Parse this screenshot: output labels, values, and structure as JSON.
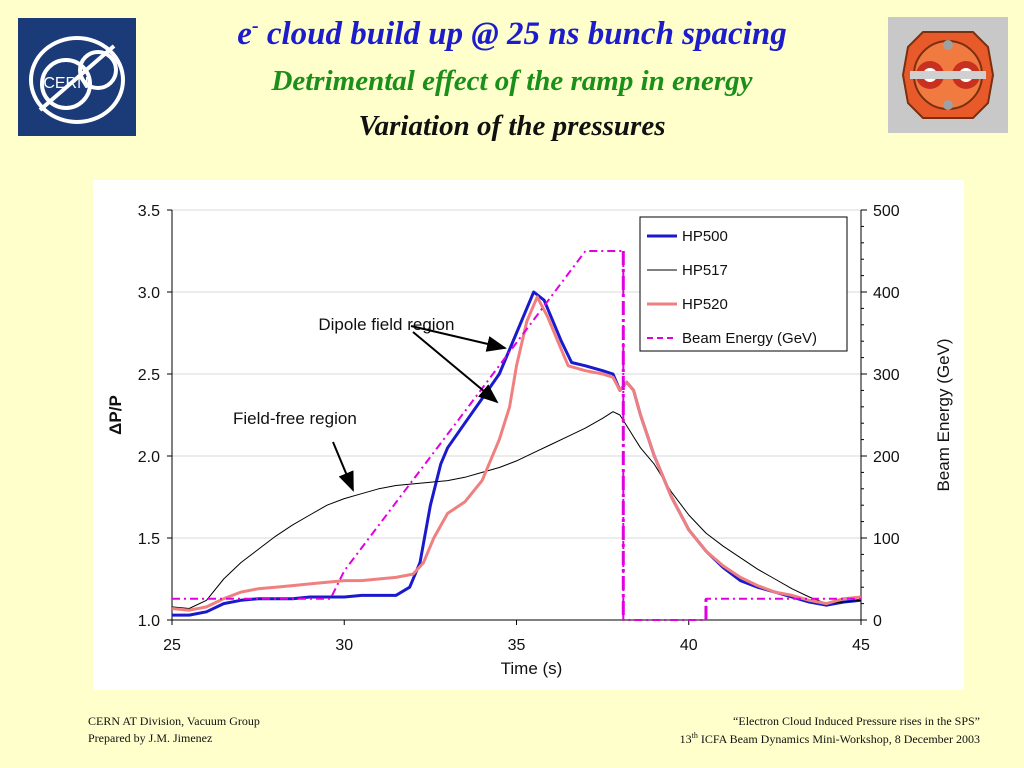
{
  "header": {
    "title_prefix": "e",
    "title_superscript": "-",
    "title_main": " cloud build up @ 25 ns bunch spacing",
    "subtitle_1": "Detrimental effect of the ramp in energy",
    "subtitle_2": "Variation of the pressures",
    "logo_left_text": "CERN"
  },
  "footer": {
    "left_line1": "CERN AT Division, Vacuum Group",
    "left_line2": "Prepared by J.M. Jimenez",
    "right_line1": "“Electron Cloud Induced Pressure rises in the SPS”",
    "right_line2_prefix": "13",
    "right_line2_superscript": "th",
    "right_line2_suffix": " ICFA Beam Dynamics Mini-Workshop, 8 December 2003"
  },
  "colors": {
    "title_main": "#1c1ccc",
    "subtitle_1": "#1a8f1a",
    "HP500": "#1a1acc",
    "HP517": "#000000",
    "HP520": "#f08080",
    "beam_energy": "#e000e0"
  },
  "chart_data": {
    "type": "line",
    "xlabel": "Time (s)",
    "ylabel": "ΔP/P",
    "y2label": "Beam Energy (GeV)",
    "xlim": [
      25,
      45
    ],
    "ylim": [
      1.0,
      3.5
    ],
    "y2lim": [
      0,
      500
    ],
    "xticks": [
      "25",
      "30",
      "35",
      "40",
      "45"
    ],
    "yticks": [
      "1.0",
      "1.5",
      "2.0",
      "2.5",
      "3.0",
      "3.5"
    ],
    "y2ticks": [
      "0",
      "100",
      "200",
      "300",
      "400",
      "500"
    ],
    "grid": true,
    "legend_position": "top-right",
    "annotations": [
      {
        "text": "Dipole field region",
        "x": 32.5,
        "y": 2.8
      },
      {
        "text": "Field-free region",
        "x": 31.0,
        "y": 2.2
      }
    ],
    "series": [
      {
        "name": "HP500",
        "axis": "left",
        "x": [
          25,
          25.5,
          26,
          26.5,
          27,
          27.5,
          28,
          28.5,
          29,
          29.5,
          30,
          30.5,
          31,
          31.5,
          31.9,
          32.2,
          32.5,
          32.8,
          33,
          33.5,
          34,
          34.5,
          35,
          35.3,
          35.5,
          35.8,
          36,
          36.3,
          36.6,
          37,
          37.5,
          37.8,
          38.0,
          38.2,
          38.4,
          38.6,
          39,
          39.5,
          40,
          40.5,
          41,
          41.5,
          42,
          42.5,
          43,
          43.5,
          44,
          44.5,
          45
        ],
        "y": [
          1.03,
          1.03,
          1.05,
          1.1,
          1.12,
          1.13,
          1.13,
          1.13,
          1.14,
          1.14,
          1.14,
          1.15,
          1.15,
          1.15,
          1.2,
          1.35,
          1.7,
          1.95,
          2.05,
          2.2,
          2.35,
          2.5,
          2.75,
          2.9,
          3.0,
          2.95,
          2.85,
          2.7,
          2.57,
          2.55,
          2.52,
          2.5,
          2.4,
          2.45,
          2.4,
          2.25,
          2.0,
          1.75,
          1.55,
          1.42,
          1.32,
          1.24,
          1.2,
          1.17,
          1.14,
          1.11,
          1.09,
          1.11,
          1.12
        ]
      },
      {
        "name": "HP517",
        "axis": "left",
        "x": [
          25,
          25.5,
          26,
          26.5,
          27,
          27.5,
          28,
          28.5,
          29,
          29.5,
          30,
          30.5,
          31,
          31.5,
          32,
          32.5,
          33,
          33.5,
          34,
          34.5,
          35,
          35.5,
          36,
          36.5,
          37,
          37.5,
          37.8,
          38,
          38.3,
          38.6,
          39,
          39.5,
          40,
          40.5,
          41,
          41.5,
          42,
          42.5,
          43,
          43.5,
          44,
          44.5,
          45
        ],
        "y": [
          1.08,
          1.07,
          1.12,
          1.25,
          1.35,
          1.43,
          1.51,
          1.58,
          1.64,
          1.7,
          1.74,
          1.77,
          1.8,
          1.82,
          1.83,
          1.84,
          1.85,
          1.87,
          1.9,
          1.93,
          1.97,
          2.02,
          2.07,
          2.12,
          2.17,
          2.23,
          2.27,
          2.25,
          2.15,
          2.05,
          1.95,
          1.78,
          1.64,
          1.53,
          1.45,
          1.38,
          1.31,
          1.25,
          1.19,
          1.14,
          1.1,
          1.11,
          1.12
        ]
      },
      {
        "name": "HP520",
        "axis": "left",
        "x": [
          25,
          25.5,
          26,
          26.5,
          27,
          27.5,
          28,
          28.5,
          29,
          29.5,
          30,
          30.5,
          31,
          31.5,
          32,
          32.3,
          32.6,
          33,
          33.5,
          34,
          34.5,
          34.8,
          35,
          35.3,
          35.6,
          35.9,
          36.2,
          36.5,
          37,
          37.5,
          37.8,
          38.0,
          38.2,
          38.4,
          38.6,
          39,
          39.5,
          40,
          40.5,
          41,
          41.5,
          42,
          42.5,
          43,
          43.5,
          44,
          44.5,
          45
        ],
        "y": [
          1.07,
          1.06,
          1.08,
          1.13,
          1.17,
          1.19,
          1.2,
          1.21,
          1.22,
          1.23,
          1.24,
          1.24,
          1.25,
          1.26,
          1.28,
          1.35,
          1.5,
          1.65,
          1.72,
          1.85,
          2.1,
          2.3,
          2.55,
          2.82,
          2.97,
          2.85,
          2.7,
          2.55,
          2.52,
          2.5,
          2.48,
          2.4,
          2.45,
          2.4,
          2.25,
          2.0,
          1.75,
          1.55,
          1.42,
          1.33,
          1.26,
          1.21,
          1.17,
          1.15,
          1.12,
          1.1,
          1.13,
          1.14
        ]
      },
      {
        "name": "Beam Energy (GeV)",
        "axis": "right",
        "x": [
          25,
          29.6,
          30,
          33.6,
          37.0,
          37.4,
          38.1,
          38.1,
          40.5,
          40.5,
          45
        ],
        "y": [
          26,
          26,
          60,
          260,
          450,
          450,
          450,
          0,
          0,
          26,
          26
        ]
      }
    ]
  }
}
